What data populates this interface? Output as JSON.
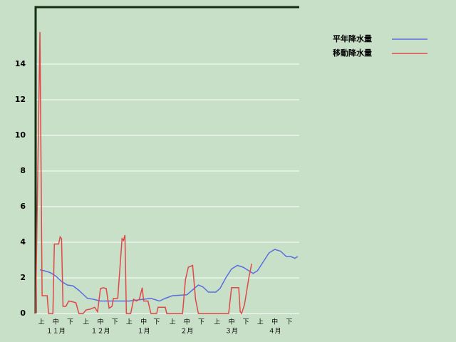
{
  "chart_data": {
    "type": "line",
    "xlim": [
      0,
      183
    ],
    "ylim": [
      0,
      17.2
    ],
    "yticks": [
      0,
      2,
      4,
      6,
      8,
      10,
      12,
      14
    ],
    "grid": true,
    "xticks": [
      {
        "value": 4,
        "label": "上"
      },
      {
        "value": 14,
        "label": "中"
      },
      {
        "value": 24,
        "label": "下"
      },
      {
        "value": 35,
        "label": "上"
      },
      {
        "value": 45,
        "label": "中"
      },
      {
        "value": 55,
        "label": "下"
      },
      {
        "value": 65,
        "label": "上"
      },
      {
        "value": 75,
        "label": "中"
      },
      {
        "value": 84,
        "label": "下"
      },
      {
        "value": 95,
        "label": "上"
      },
      {
        "value": 105,
        "label": "中"
      },
      {
        "value": 115,
        "label": "下"
      },
      {
        "value": 126,
        "label": "上"
      },
      {
        "value": 136,
        "label": "中"
      },
      {
        "value": 146,
        "label": "下"
      },
      {
        "value": 156,
        "label": "上"
      },
      {
        "value": 166,
        "label": "中"
      },
      {
        "value": 176,
        "label": "下"
      }
    ],
    "month_labels": [
      {
        "value": 14,
        "label": "１１月"
      },
      {
        "value": 45,
        "label": "１２月"
      },
      {
        "value": 75,
        "label": "１月"
      },
      {
        "value": 105,
        "label": "２月"
      },
      {
        "value": 136,
        "label": "３月"
      },
      {
        "value": 166,
        "label": "４月"
      }
    ],
    "legend": "upper right",
    "series": [
      {
        "name": "平年降水量",
        "color": "#5a6ee0",
        "x": [
          3,
          6,
          10,
          14,
          18,
          22,
          26,
          30,
          34,
          36,
          40,
          45,
          65,
          70,
          80,
          86,
          90,
          95,
          105,
          110,
          113,
          116,
          120,
          125,
          128,
          132,
          136,
          140,
          144,
          148,
          151,
          154,
          158,
          162,
          166,
          170,
          174,
          177,
          180,
          182
        ],
        "values": [
          2.45,
          2.4,
          2.3,
          2.1,
          1.8,
          1.6,
          1.55,
          1.3,
          1.0,
          0.85,
          0.8,
          0.7,
          0.7,
          0.75,
          0.85,
          0.7,
          0.85,
          1.0,
          1.05,
          1.4,
          1.6,
          1.5,
          1.2,
          1.2,
          1.4,
          2.0,
          2.5,
          2.7,
          2.6,
          2.4,
          2.25,
          2.4,
          2.9,
          3.4,
          3.6,
          3.5,
          3.2,
          3.2,
          3.1,
          3.2
        ]
      },
      {
        "name": "移動降水量",
        "color": "#e04848",
        "x": [
          0,
          3,
          4.5,
          8,
          9,
          12,
          13,
          16,
          17,
          18,
          19,
          21,
          23,
          26,
          28,
          30,
          33,
          35,
          38,
          41,
          43,
          45,
          47,
          49,
          51,
          53,
          54,
          57,
          60,
          61,
          62,
          63,
          66,
          68,
          70,
          72,
          74,
          75,
          78,
          80,
          84,
          85,
          90,
          91,
          102,
          104,
          106,
          109,
          111,
          113,
          134,
          136,
          141,
          142,
          143,
          145,
          147,
          148,
          150
        ],
        "values": [
          0,
          15.8,
          1,
          1,
          0,
          0,
          3.9,
          3.9,
          4.3,
          4.2,
          0.4,
          0.4,
          0.7,
          0.65,
          0.6,
          0,
          0,
          0.2,
          0.25,
          0.35,
          0.1,
          1.4,
          1.45,
          1.4,
          0.3,
          0.4,
          0.85,
          0.85,
          4.2,
          4.1,
          4.4,
          0,
          0,
          0.8,
          0.7,
          0.8,
          1.45,
          0.7,
          0.7,
          0,
          0,
          0.35,
          0.35,
          0,
          0,
          1.9,
          2.6,
          2.7,
          0.8,
          0,
          0,
          1.45,
          1.45,
          0.1,
          0,
          0.5,
          1.5,
          2,
          2.8
        ]
      }
    ]
  }
}
